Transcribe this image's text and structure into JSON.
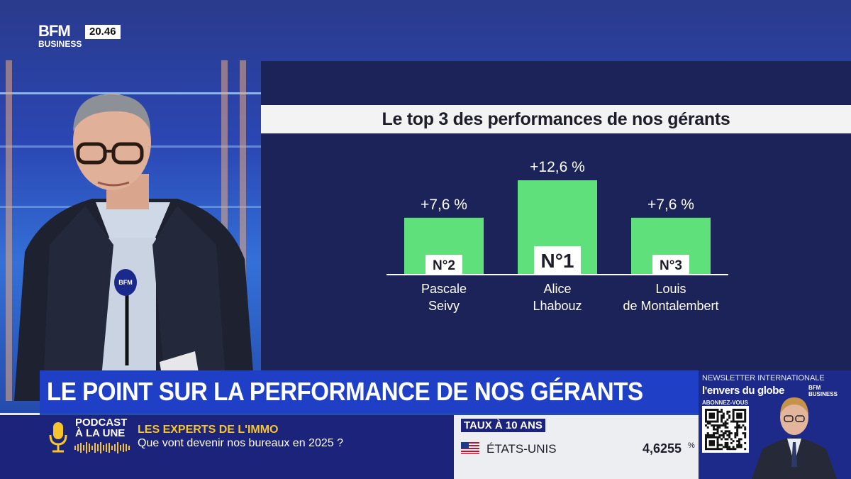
{
  "brand": {
    "logo_top": "BFM",
    "logo_bottom": "BUSINESS",
    "time": "20.46"
  },
  "headline": "LE POINT SUR LA PERFORMANCE DE NOS GÉRANTS",
  "podcast": {
    "line1": "PODCAST",
    "line2": "À LA UNE"
  },
  "experts": {
    "title": "LES EXPERTS DE L'IMMO",
    "subtitle": "Que vont devenir nos bureaux en 2025 ?"
  },
  "rates": {
    "title": "TAUX À 10 ANS",
    "country": "ÉTATS-UNIS",
    "value": "4,6255",
    "unit": "%"
  },
  "newsletter": {
    "line1": "NEWSLETTER INTERNATIONALE",
    "line2": "l'envers du globe",
    "line3": "ABONNEZ-VOUS",
    "logo_top": "BFM",
    "logo_bottom": "BUSINESS"
  },
  "mic_label": "BFM",
  "colors": {
    "bar": "#5fe07a",
    "panel": "#1c2358",
    "headline": "#1f3fc7",
    "ticker": "#1b237a",
    "accent": "#f6c52c"
  },
  "chart_data": {
    "type": "bar",
    "title": "Le top 3 des performances de nos gérants",
    "categories": [
      {
        "line1": "Pascale",
        "line2": "Seivy",
        "rank": "N°2"
      },
      {
        "line1": "Alice",
        "line2": "Lhabouz",
        "rank": "N°1"
      },
      {
        "line1": "Louis",
        "line2": "de Montalembert",
        "rank": "N°3"
      }
    ],
    "values": [
      7.6,
      12.6,
      7.6
    ],
    "value_labels": [
      "+7,6 %",
      "+12,6 %",
      "+7,6 %"
    ],
    "ylim": [
      0,
      14.5
    ],
    "grid": false,
    "legend": "none"
  }
}
